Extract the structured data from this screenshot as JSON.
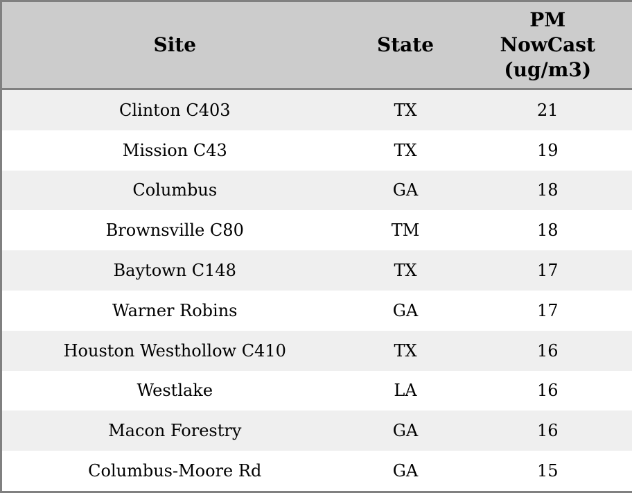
{
  "header": {
    "site_label": "Site",
    "state_label": "State",
    "pm_label": "PM\nNowCast\n(ug/m3)"
  },
  "chart_data": {
    "type": "table",
    "title": "",
    "columns": [
      "Site",
      "State",
      "PM NowCast (ug/m3)"
    ],
    "rows": [
      [
        "Clinton C403",
        "TX",
        21
      ],
      [
        "Mission C43",
        "TX",
        19
      ],
      [
        "Columbus",
        "GA",
        18
      ],
      [
        "Brownsville C80",
        "TM",
        18
      ],
      [
        "Baytown C148",
        "TX",
        17
      ],
      [
        "Warner Robins",
        "GA",
        17
      ],
      [
        "Houston Westhollow C410",
        "TX",
        16
      ],
      [
        "Westlake",
        "LA",
        16
      ],
      [
        "Macon Forestry",
        "GA",
        16
      ],
      [
        "Columbus-Moore Rd",
        "GA",
        15
      ]
    ],
    "layout": {
      "striped_rows": true,
      "header_bg": "#cccccc",
      "stripe_bg": "#efefef",
      "row_bg": "#ffffff",
      "border_color": "#808080",
      "text_color": "#000000"
    }
  }
}
